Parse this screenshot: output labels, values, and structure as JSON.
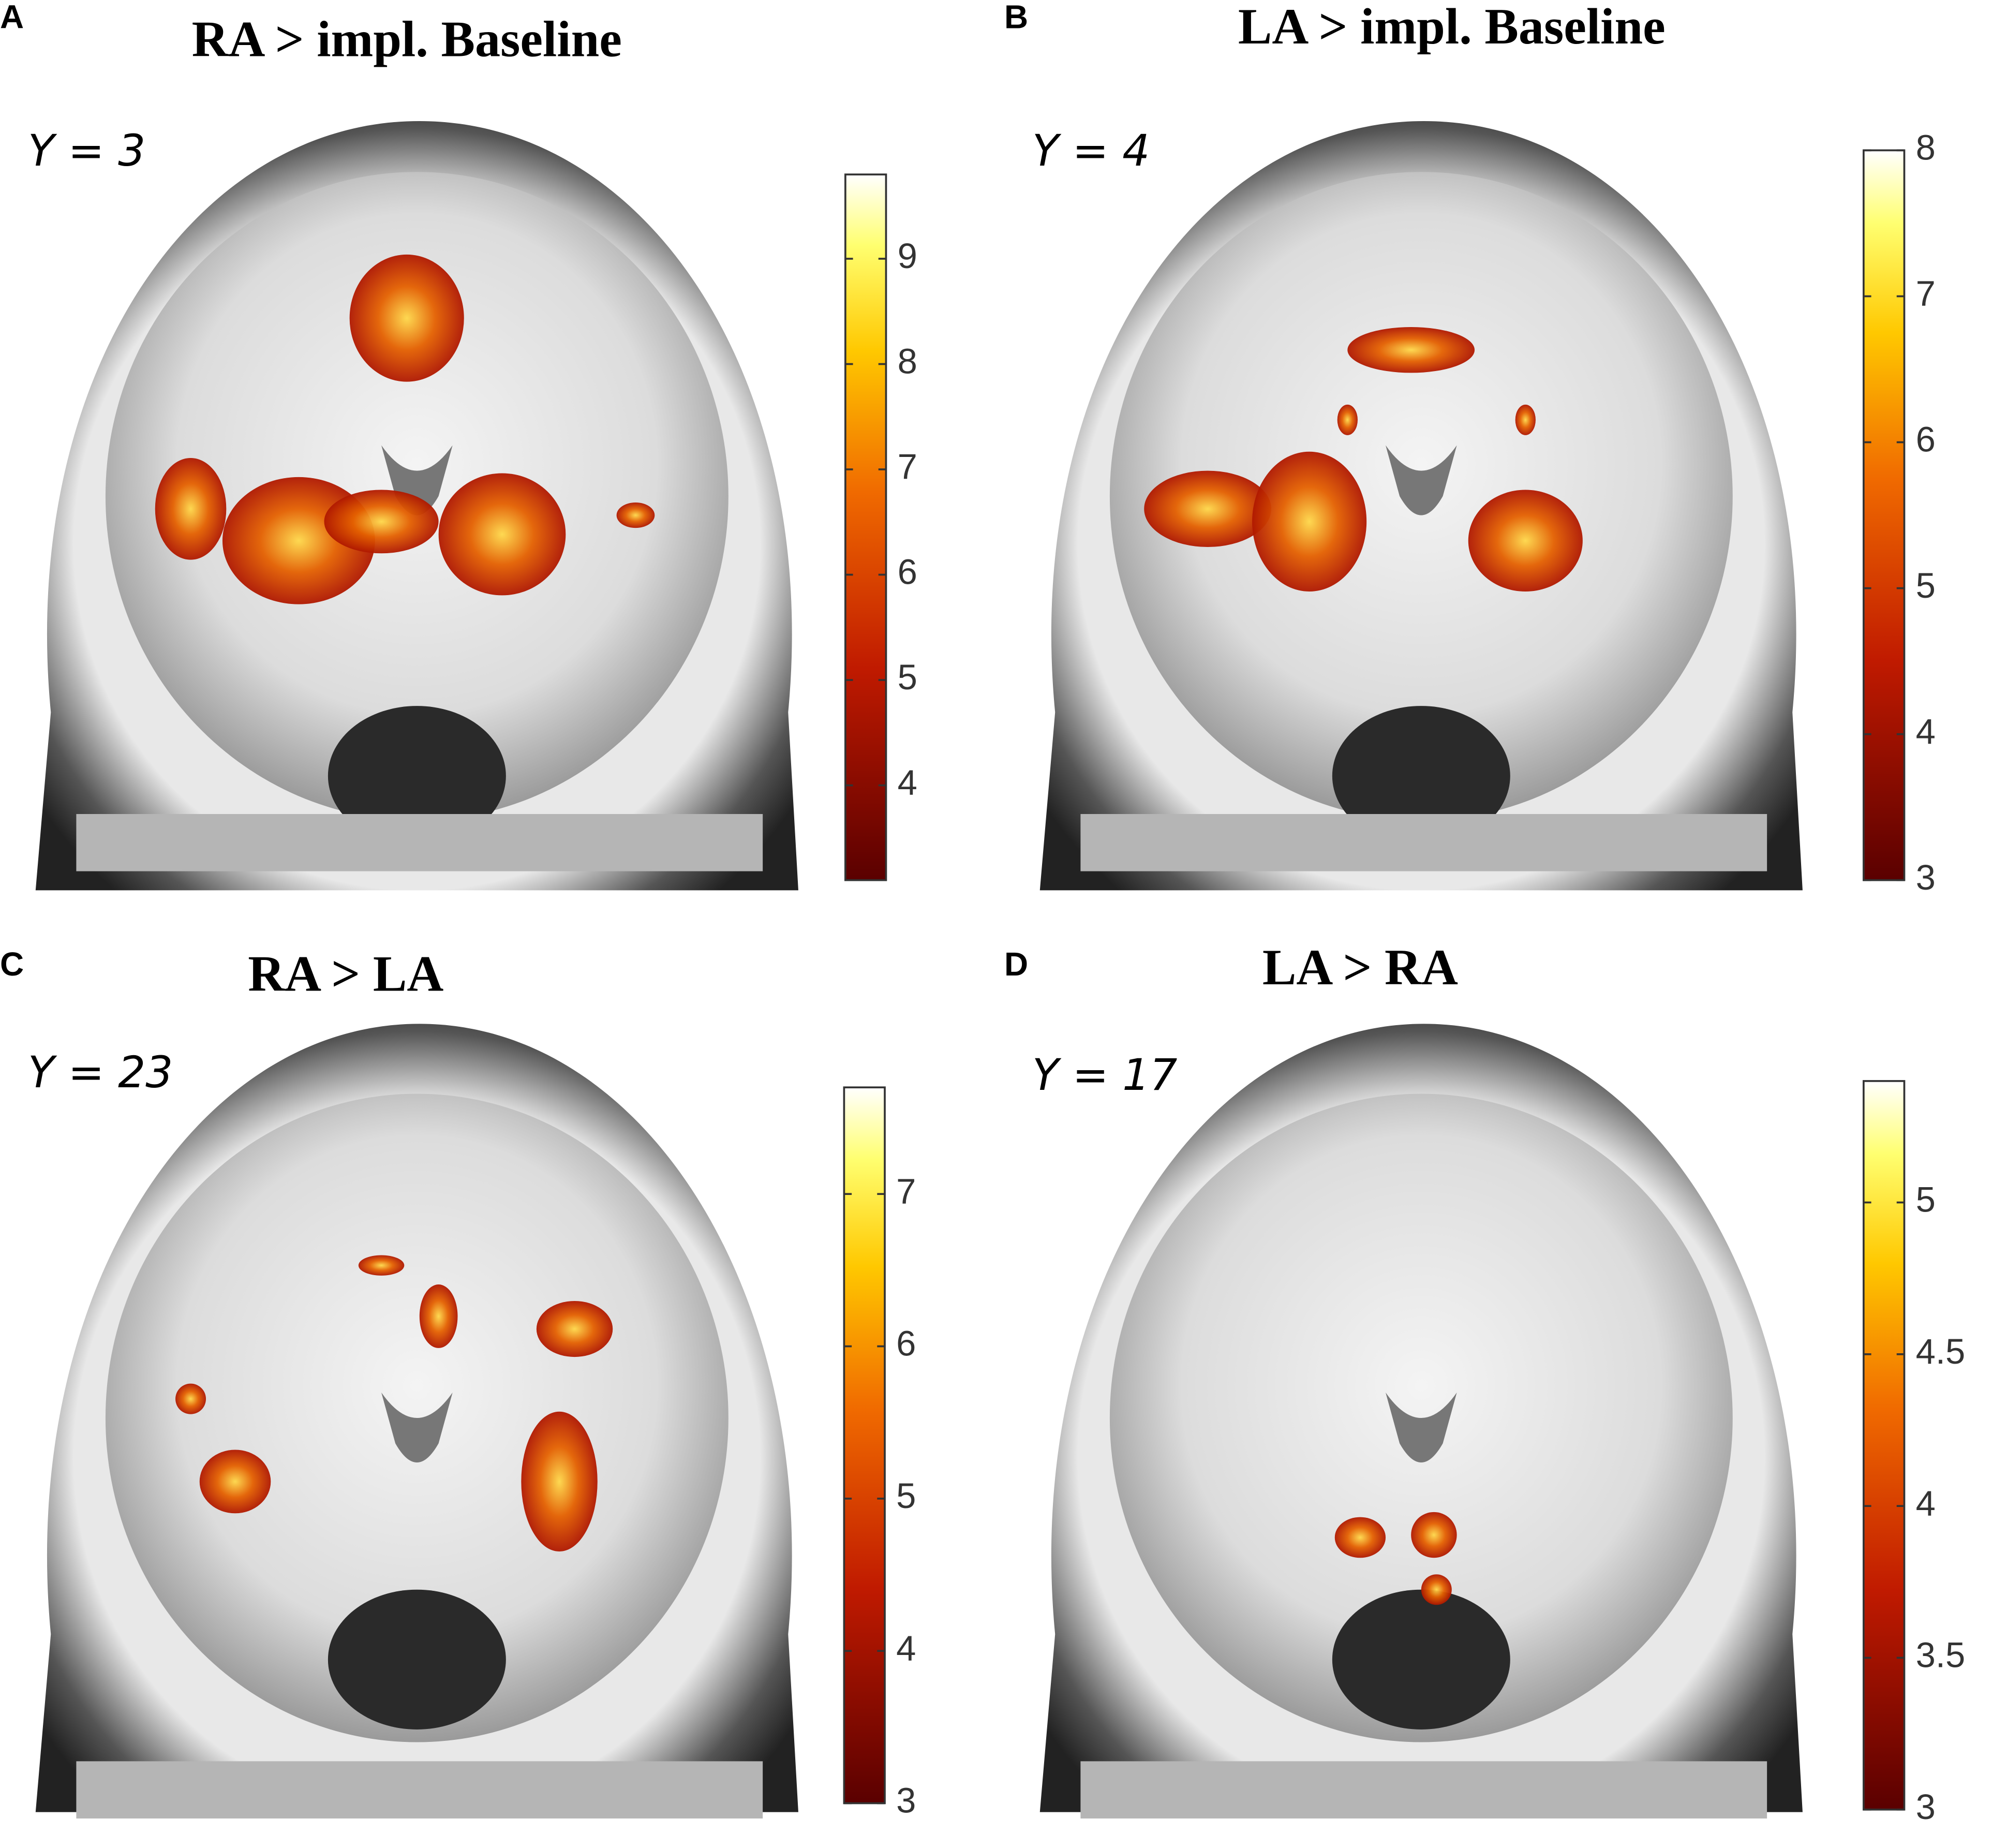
{
  "panels": [
    {
      "letter": "A",
      "title": "RA > impl. Baseline",
      "slice": "Y = 3",
      "colorbar": {
        "lim": [
          3.1,
          9.8
        ],
        "ticks": [
          4,
          5,
          6,
          7,
          8,
          9
        ]
      }
    },
    {
      "letter": "B",
      "title": "LA > impl. Baseline",
      "slice": "Y = 4",
      "colorbar": {
        "lim": [
          3,
          8
        ],
        "ticks": [
          3,
          4,
          5,
          6,
          7,
          8
        ]
      }
    },
    {
      "letter": "C",
      "title": "RA > LA",
      "slice": "Y = 23",
      "colorbar": {
        "lim": [
          3,
          7.7
        ],
        "ticks": [
          3,
          4,
          5,
          6,
          7
        ]
      }
    },
    {
      "letter": "D",
      "title": "LA > RA",
      "slice": "Y = 17",
      "colorbar": {
        "lim": [
          3,
          5.4
        ],
        "ticks": [
          3,
          3.5,
          4,
          4.5,
          5
        ]
      }
    }
  ]
}
